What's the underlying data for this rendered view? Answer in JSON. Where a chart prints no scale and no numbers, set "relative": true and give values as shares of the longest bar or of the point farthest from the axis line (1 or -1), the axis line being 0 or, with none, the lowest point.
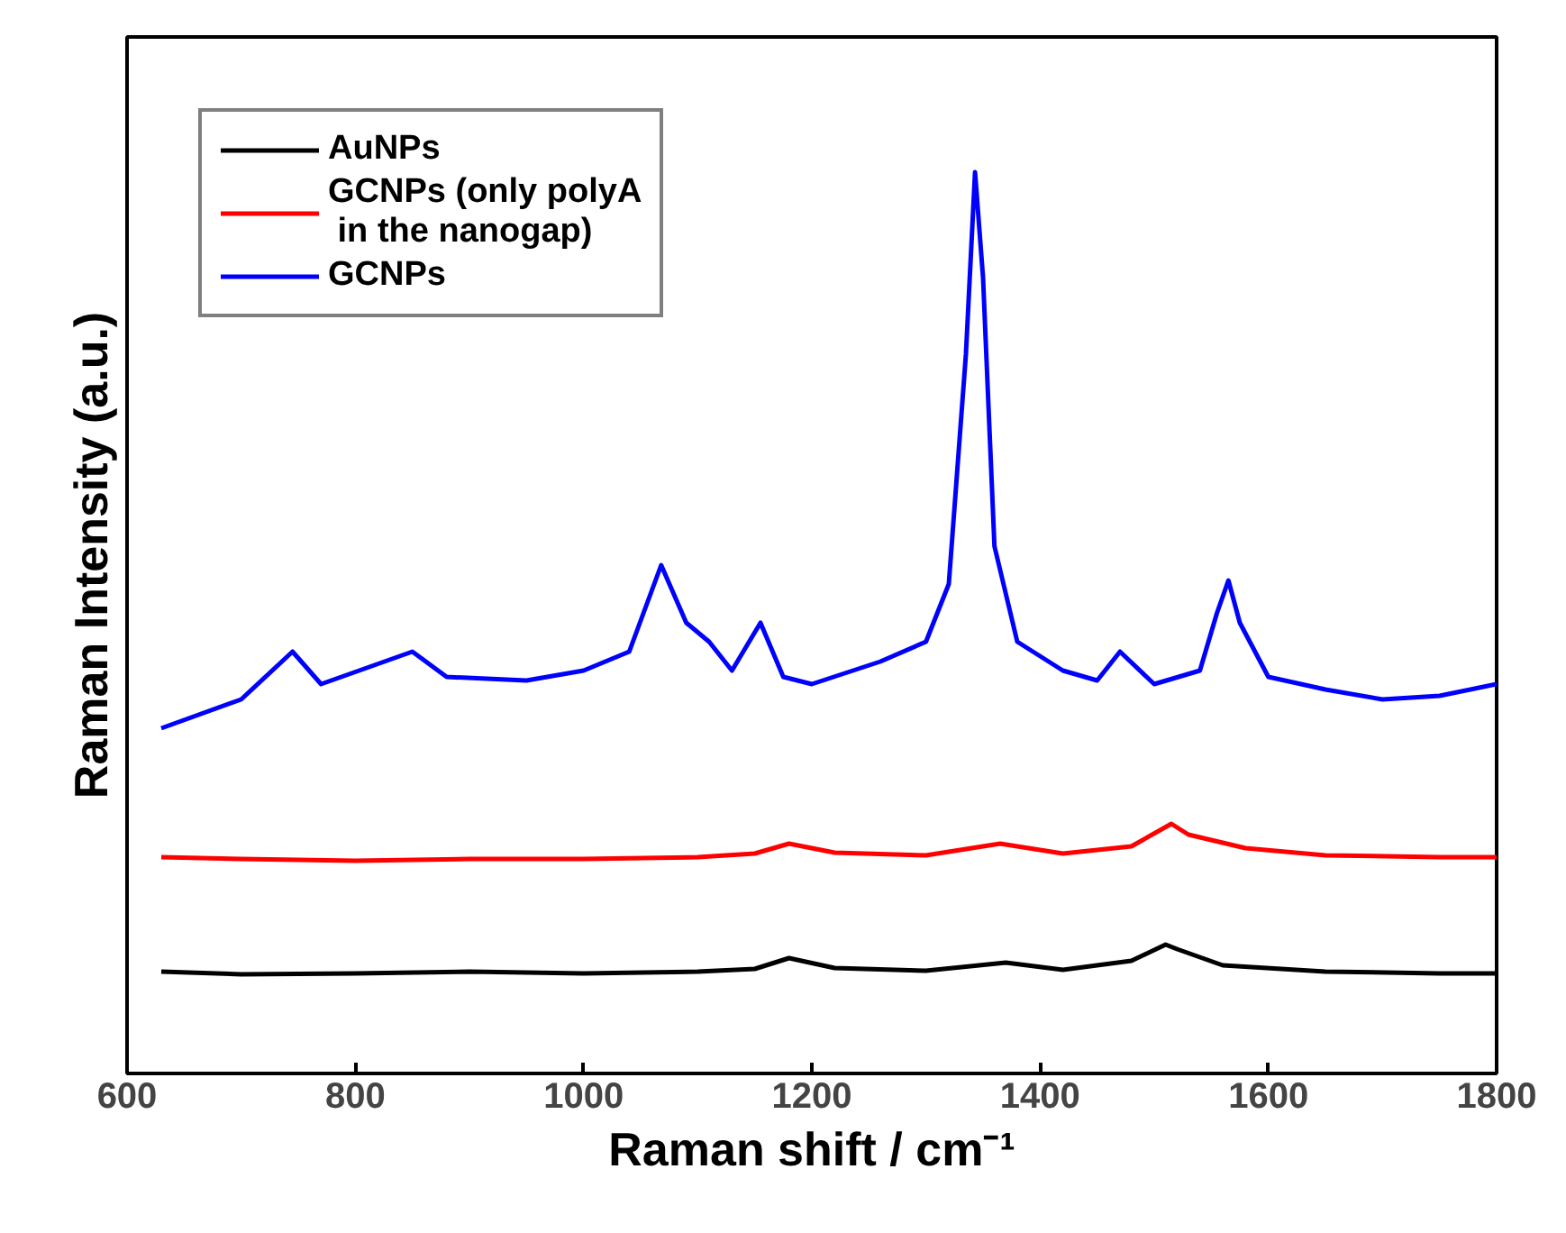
{
  "chart_data": {
    "type": "line",
    "xlabel": "Raman shift / cm⁻¹",
    "ylabel": "Raman Intensity (a.u.)",
    "relative": true,
    "xlim": [
      600,
      1800
    ],
    "xticks": [
      600,
      800,
      1000,
      1200,
      1400,
      1600,
      1800
    ],
    "tick_labels": "x",
    "legend": "top left",
    "grid": false,
    "line_style": "solid",
    "marker": "none",
    "series": [
      {
        "name": "AuNPs",
        "color": "#000000",
        "x": [
          630,
          700,
          800,
          900,
          1000,
          1100,
          1150,
          1180,
          1220,
          1300,
          1370,
          1420,
          1480,
          1510,
          1520,
          1560,
          1650,
          1750,
          1800
        ],
        "values": [
          0.113,
          0.11,
          0.111,
          0.113,
          0.111,
          0.113,
          0.116,
          0.128,
          0.117,
          0.114,
          0.123,
          0.115,
          0.125,
          0.143,
          0.138,
          0.12,
          0.113,
          0.111,
          0.111
        ]
      },
      {
        "name": "GCNPs (only polyA\n in the nanogap)",
        "color": "#ff0000",
        "x": [
          630,
          700,
          800,
          900,
          1000,
          1100,
          1150,
          1180,
          1220,
          1300,
          1365,
          1420,
          1480,
          1515,
          1530,
          1580,
          1650,
          1750,
          1800
        ],
        "values": [
          0.24,
          0.238,
          0.236,
          0.238,
          0.238,
          0.24,
          0.244,
          0.255,
          0.245,
          0.242,
          0.255,
          0.244,
          0.252,
          0.277,
          0.265,
          0.25,
          0.242,
          0.24,
          0.24
        ]
      },
      {
        "name": "GCNPs",
        "color": "#0000ff",
        "x": [
          630,
          700,
          745,
          770,
          850,
          880,
          950,
          1000,
          1040,
          1068,
          1090,
          1110,
          1130,
          1155,
          1175,
          1200,
          1260,
          1300,
          1320,
          1335,
          1343,
          1350,
          1360,
          1380,
          1420,
          1450,
          1470,
          1500,
          1540,
          1555,
          1565,
          1575,
          1600,
          1650,
          1700,
          1750,
          1800
        ],
        "values": [
          0.383,
          0.415,
          0.468,
          0.432,
          0.468,
          0.44,
          0.436,
          0.447,
          0.468,
          0.564,
          0.5,
          0.479,
          0.447,
          0.5,
          0.44,
          0.432,
          0.457,
          0.479,
          0.543,
          0.798,
          1.0,
          0.883,
          0.585,
          0.479,
          0.447,
          0.436,
          0.468,
          0.432,
          0.447,
          0.511,
          0.547,
          0.5,
          0.44,
          0.426,
          0.415,
          0.419,
          0.432
        ]
      }
    ]
  }
}
